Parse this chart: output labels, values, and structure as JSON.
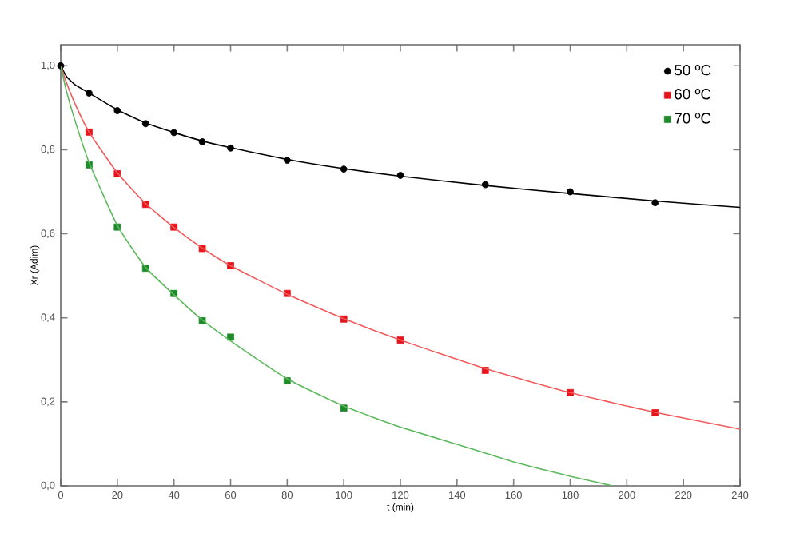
{
  "chart_data": {
    "type": "scatter",
    "xlabel": "t (min)",
    "ylabel": "Xr (Adim)",
    "xlim": [
      0,
      240
    ],
    "ylim": [
      0,
      1.05
    ],
    "xticks": [
      0,
      20,
      40,
      60,
      80,
      100,
      120,
      140,
      160,
      180,
      200,
      220,
      240
    ],
    "yticks": [
      {
        "value": 0,
        "label": "0,0"
      },
      {
        "value": 0.2,
        "label": "0,2"
      },
      {
        "value": 0.4,
        "label": "0,4"
      },
      {
        "value": 0.6,
        "label": "0,6"
      },
      {
        "value": 0.8,
        "label": "0,8"
      },
      {
        "value": 1,
        "label": "1,0"
      }
    ],
    "grid": false,
    "legend": "top right",
    "series": [
      {
        "name": "50 ºC",
        "marker": "circle",
        "color": "#000000",
        "x": [
          0,
          10,
          20,
          30,
          40,
          50,
          60,
          80,
          100,
          120,
          150,
          180,
          210
        ],
        "values": [
          1.0,
          0.935,
          0.893,
          0.862,
          0.841,
          0.819,
          0.804,
          0.775,
          0.754,
          0.739,
          0.717,
          0.7,
          0.674
        ]
      },
      {
        "name": "60 ºC",
        "marker": "square",
        "color": "#e8141c",
        "x": [
          10,
          20,
          30,
          40,
          50,
          60,
          80,
          100,
          120,
          150,
          180,
          210
        ],
        "values": [
          0.842,
          0.743,
          0.67,
          0.616,
          0.565,
          0.524,
          0.458,
          0.397,
          0.347,
          0.275,
          0.222,
          0.174
        ]
      },
      {
        "name": "70 ºC",
        "marker": "square",
        "color": "#1e8a2a",
        "x": [
          10,
          20,
          30,
          40,
          50,
          60,
          80,
          100
        ],
        "values": [
          0.764,
          0.616,
          0.518,
          0.458,
          0.393,
          0.354,
          0.25,
          0.185
        ]
      },
      {
        "type": "line",
        "color": "#000000",
        "x": [
          0,
          2,
          5,
          10,
          20,
          30,
          40,
          50,
          60,
          80,
          100,
          120,
          150,
          180,
          210,
          240
        ],
        "values": [
          1.0,
          0.975,
          0.955,
          0.935,
          0.895,
          0.864,
          0.841,
          0.821,
          0.805,
          0.777,
          0.755,
          0.737,
          0.715,
          0.696,
          0.678,
          0.663
        ]
      },
      {
        "type": "line",
        "color": "#f05a5a",
        "x": [
          0,
          2,
          5,
          10,
          20,
          30,
          40,
          50,
          60,
          80,
          100,
          120,
          150,
          180,
          210,
          240
        ],
        "values": [
          1.0,
          0.96,
          0.91,
          0.842,
          0.745,
          0.672,
          0.615,
          0.566,
          0.524,
          0.456,
          0.398,
          0.347,
          0.279,
          0.222,
          0.175,
          0.135
        ]
      },
      {
        "type": "line",
        "color": "#5cb85c",
        "x": [
          0,
          2,
          5,
          10,
          20,
          30,
          40,
          50,
          60,
          80,
          100,
          120,
          140,
          160,
          180,
          195
        ],
        "values": [
          1.0,
          0.94,
          0.87,
          0.77,
          0.62,
          0.52,
          0.455,
          0.395,
          0.345,
          0.255,
          0.19,
          0.14,
          0.099,
          0.057,
          0.023,
          0.0
        ]
      }
    ]
  }
}
